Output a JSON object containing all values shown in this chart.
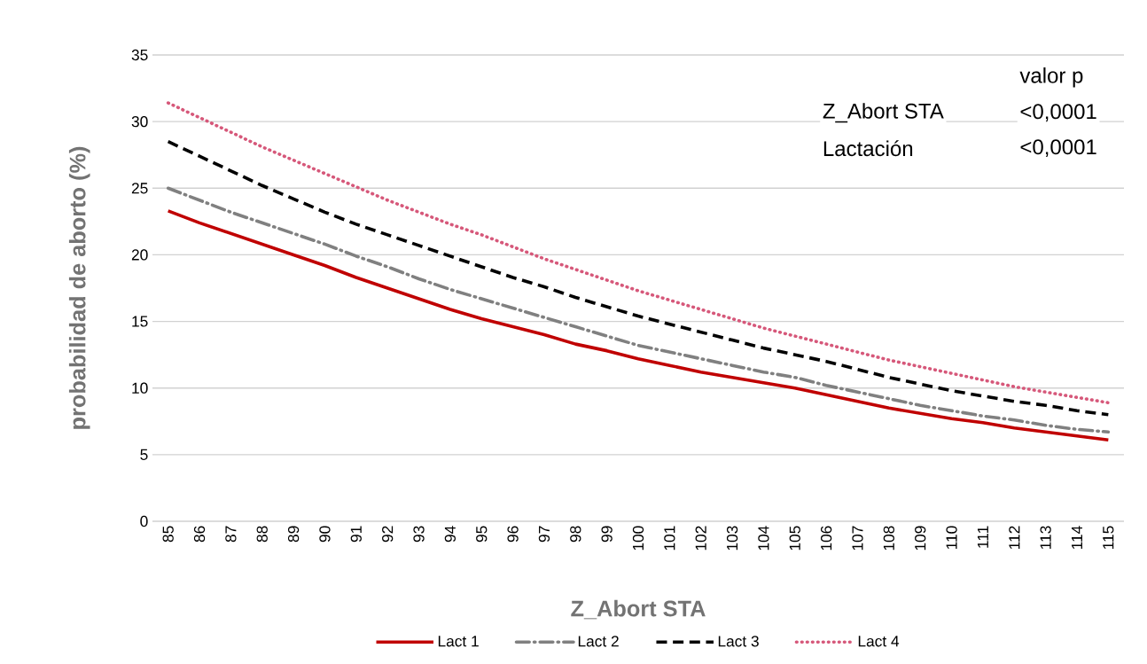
{
  "chart_data": {
    "type": "line",
    "xlabel": "Z_Abort STA",
    "ylabel": "probabilidad de aborto (%)",
    "categories": [
      "85",
      "86",
      "87",
      "88",
      "89",
      "90",
      "91",
      "92",
      "93",
      "94",
      "95",
      "96",
      "97",
      "98",
      "99",
      "100",
      "101",
      "102",
      "103",
      "104",
      "105",
      "106",
      "107",
      "108",
      "109",
      "110",
      "111",
      "112",
      "113",
      "114",
      "115"
    ],
    "series": [
      {
        "name": "Lact 1",
        "color": "#c00000",
        "line_style": "solid",
        "values": [
          23.3,
          22.4,
          21.6,
          20.8,
          20.0,
          19.2,
          18.3,
          17.5,
          16.7,
          15.9,
          15.2,
          14.6,
          14.0,
          13.3,
          12.8,
          12.2,
          11.7,
          11.2,
          10.8,
          10.4,
          10.0,
          9.5,
          9.0,
          8.5,
          8.1,
          7.7,
          7.4,
          7.0,
          6.7,
          6.4,
          6.1
        ]
      },
      {
        "name": "Lact 2",
        "color": "#808080",
        "line_style": "dashdot",
        "values": [
          25.0,
          24.1,
          23.2,
          22.4,
          21.6,
          20.8,
          19.9,
          19.1,
          18.2,
          17.4,
          16.7,
          16.0,
          15.3,
          14.6,
          13.9,
          13.2,
          12.7,
          12.2,
          11.7,
          11.2,
          10.8,
          10.2,
          9.7,
          9.2,
          8.7,
          8.3,
          7.9,
          7.6,
          7.2,
          6.9,
          6.7
        ]
      },
      {
        "name": "Lact 3",
        "color": "#000000",
        "line_style": "dashed",
        "values": [
          28.5,
          27.4,
          26.3,
          25.2,
          24.2,
          23.2,
          22.3,
          21.5,
          20.7,
          19.9,
          19.1,
          18.3,
          17.6,
          16.8,
          16.1,
          15.4,
          14.8,
          14.2,
          13.6,
          13.0,
          12.5,
          12.0,
          11.4,
          10.8,
          10.3,
          9.8,
          9.4,
          9.0,
          8.7,
          8.3,
          8.0
        ]
      },
      {
        "name": "Lact 4",
        "color": "#d6587a",
        "line_style": "dotted",
        "values": [
          31.4,
          30.3,
          29.2,
          28.1,
          27.1,
          26.1,
          25.1,
          24.1,
          23.2,
          22.3,
          21.5,
          20.6,
          19.7,
          18.9,
          18.1,
          17.3,
          16.6,
          15.9,
          15.2,
          14.5,
          13.9,
          13.3,
          12.7,
          12.1,
          11.6,
          11.1,
          10.6,
          10.1,
          9.7,
          9.3,
          8.9
        ]
      }
    ],
    "ylim": [
      0,
      35
    ],
    "yticks": [
      0,
      5,
      10,
      15,
      20,
      25,
      30,
      35
    ],
    "grid": "y",
    "legend": "bottom",
    "annotations": [
      "valor p",
      "Z_Abort STA",
      "<0,0001",
      "Lactación",
      "<0,0001"
    ]
  }
}
